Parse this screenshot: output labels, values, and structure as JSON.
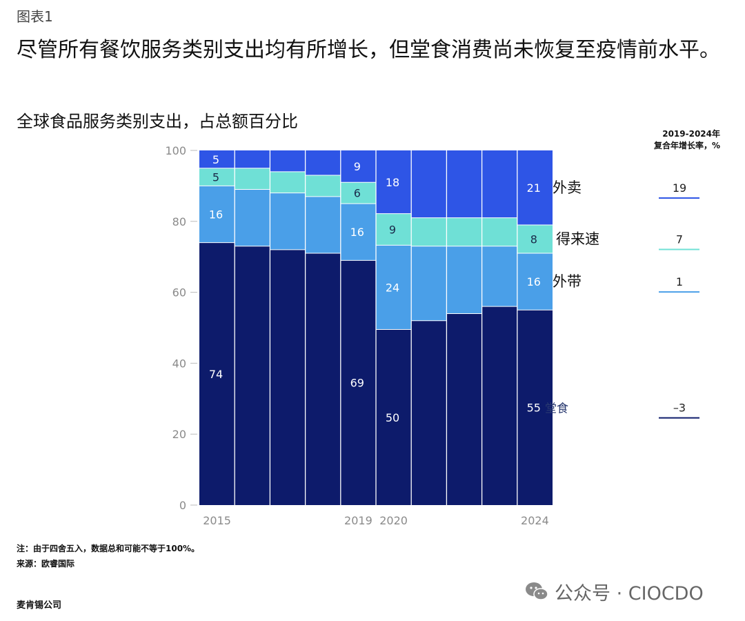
{
  "figure_label": "图表1",
  "headline": "尽管所有餐饮服务类别支出均有所增长，但堂食消费尚未恢复至疫情前水平。",
  "footer": {
    "note": "注：由于四舍五入，数据总和可能不等于100%。",
    "source": "来源：欧睿国际",
    "company": "麦肯锡公司"
  },
  "watermark": {
    "text": "公众号 · CIOCDO",
    "icon": "wechat-icon"
  },
  "colors": {
    "dine_in": "#0d1b6b",
    "takeaway": "#4a9fe8",
    "quick_service": "#6fe0d6",
    "delivery": "#2e55e6",
    "divider": "#ffffff",
    "axis_text": "#8a8a8a",
    "grid_tick": "#bbbbbb"
  },
  "chart_data": {
    "type": "bar",
    "stacked": true,
    "title": "全球食品服务类别支出，占总额百分比",
    "xlabel": "",
    "ylabel": "",
    "ylim": [
      0,
      100
    ],
    "yticks": [
      0,
      20,
      40,
      60,
      80,
      100
    ],
    "categories": [
      "2015",
      "2016",
      "2017",
      "2018",
      "2019",
      "2020",
      "2021",
      "2022",
      "2023",
      "2024"
    ],
    "x_tick_labels": [
      "2015",
      "",
      "",
      "",
      "2019",
      "2020",
      "",
      "",
      "",
      "2024"
    ],
    "grid": false,
    "series": [
      {
        "key": "dine_in",
        "name": "堂食",
        "values": [
          74,
          73,
          72,
          71,
          69,
          50,
          52,
          54,
          56,
          55
        ],
        "data_labels": [
          "74",
          "",
          "",
          "",
          "69",
          "50",
          "",
          "",
          "",
          "55"
        ]
      },
      {
        "key": "takeaway",
        "name": "外带",
        "values": [
          16,
          16,
          16,
          16,
          16,
          24,
          21,
          19,
          17,
          16
        ],
        "data_labels": [
          "16",
          "",
          "",
          "",
          "16",
          "24",
          "",
          "",
          "",
          "16"
        ]
      },
      {
        "key": "quick_service",
        "name": "得来速",
        "values": [
          5,
          6,
          6,
          6,
          6,
          9,
          8,
          8,
          8,
          8
        ],
        "data_labels": [
          "5",
          "",
          "",
          "",
          "6",
          "9",
          "",
          "",
          "",
          "8"
        ]
      },
      {
        "key": "delivery",
        "name": "外卖",
        "values": [
          5,
          5,
          6,
          7,
          9,
          18,
          19,
          19,
          19,
          21
        ],
        "data_labels": [
          "5",
          "",
          "",
          "",
          "9",
          "18",
          "",
          "",
          "",
          "21"
        ]
      }
    ],
    "cagr": {
      "header_line1": "2019-2024年",
      "header_line2": "复合年增长率，%",
      "values": {
        "delivery": "19",
        "quick_service": "7",
        "takeaway": "1",
        "dine_in": "–3"
      }
    }
  }
}
